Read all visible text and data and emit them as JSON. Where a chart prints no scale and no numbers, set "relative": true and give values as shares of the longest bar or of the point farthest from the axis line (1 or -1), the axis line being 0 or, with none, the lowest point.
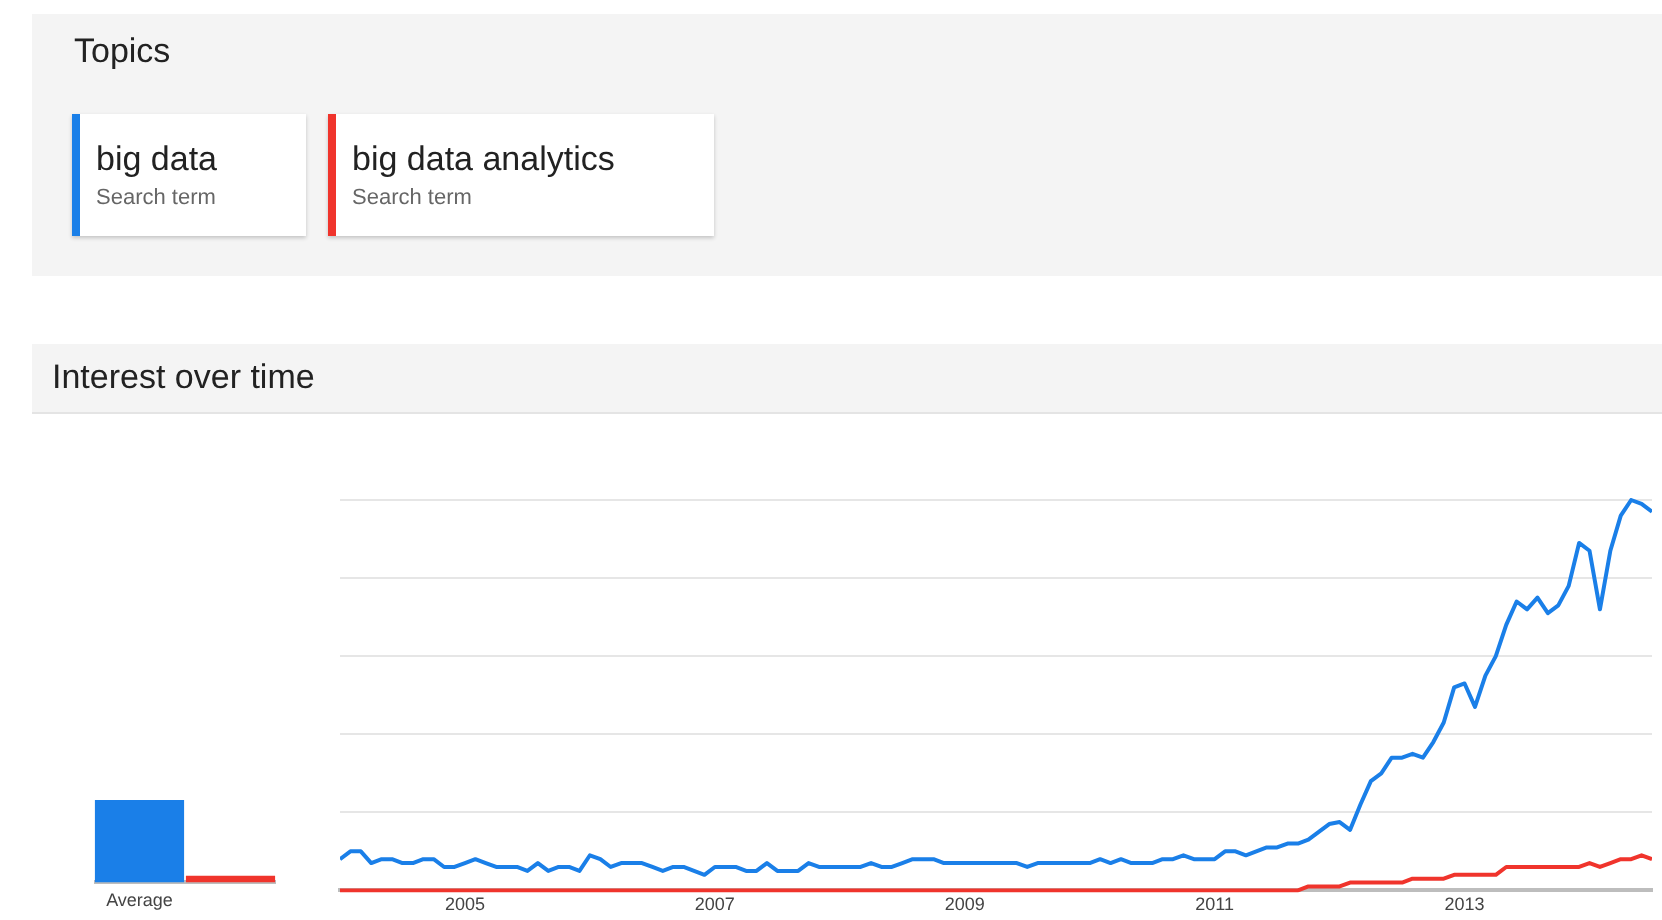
{
  "chart_data": [
    {
      "type": "bar",
      "relative": true,
      "categories": [
        "Average",
        null
      ],
      "values": [
        1,
        0.08
      ],
      "colors": [
        "#1a7fe8",
        "#f0342c"
      ]
    },
    {
      "type": "line",
      "title": "Interest over time",
      "legend_title": "Topics",
      "legend": "top",
      "relative": true,
      "grid": "y",
      "marker": "none",
      "annotations": [
        "Search term",
        "Search term"
      ],
      "xlim": [
        "2004-01",
        "2014-07"
      ],
      "xticks": [
        {
          "value": "2005",
          "label": "2005"
        },
        {
          "value": "2007",
          "label": "2007"
        },
        {
          "value": "2009",
          "label": "2009"
        },
        {
          "value": "2011",
          "label": "2011"
        },
        {
          "value": "2013",
          "label": "2013"
        }
      ],
      "x": [
        "2004-01",
        "2004-02",
        "2004-03",
        "2004-04",
        "2004-05",
        "2004-06",
        "2004-07",
        "2004-08",
        "2004-09",
        "2004-10",
        "2004-11",
        "2004-12",
        "2005-01",
        "2005-02",
        "2005-03",
        "2005-04",
        "2005-05",
        "2005-06",
        "2005-07",
        "2005-08",
        "2005-09",
        "2005-10",
        "2005-11",
        "2005-12",
        "2006-01",
        "2006-02",
        "2006-03",
        "2006-04",
        "2006-05",
        "2006-06",
        "2006-07",
        "2006-08",
        "2006-09",
        "2006-10",
        "2006-11",
        "2006-12",
        "2007-01",
        "2007-02",
        "2007-03",
        "2007-04",
        "2007-05",
        "2007-06",
        "2007-07",
        "2007-08",
        "2007-09",
        "2007-10",
        "2007-11",
        "2007-12",
        "2008-01",
        "2008-02",
        "2008-03",
        "2008-04",
        "2008-05",
        "2008-06",
        "2008-07",
        "2008-08",
        "2008-09",
        "2008-10",
        "2008-11",
        "2008-12",
        "2009-01",
        "2009-02",
        "2009-03",
        "2009-04",
        "2009-05",
        "2009-06",
        "2009-07",
        "2009-08",
        "2009-09",
        "2009-10",
        "2009-11",
        "2009-12",
        "2010-01",
        "2010-02",
        "2010-03",
        "2010-04",
        "2010-05",
        "2010-06",
        "2010-07",
        "2010-08",
        "2010-09",
        "2010-10",
        "2010-11",
        "2010-12",
        "2011-01",
        "2011-02",
        "2011-03",
        "2011-04",
        "2011-05",
        "2011-06",
        "2011-07",
        "2011-08",
        "2011-09",
        "2011-10",
        "2011-11",
        "2011-12",
        "2012-01",
        "2012-02",
        "2012-03",
        "2012-04",
        "2012-05",
        "2012-06",
        "2012-07",
        "2012-08",
        "2012-09",
        "2012-10",
        "2012-11",
        "2012-12",
        "2013-01",
        "2013-02",
        "2013-03",
        "2013-04",
        "2013-05",
        "2013-06",
        "2013-07",
        "2013-08",
        "2013-09",
        "2013-10",
        "2013-11",
        "2013-12",
        "2014-01",
        "2014-02",
        "2014-03",
        "2014-04",
        "2014-05",
        "2014-06",
        "2014-07"
      ],
      "series": [
        {
          "name": "big data",
          "color": "#1a7fe8",
          "values": [
            0.08,
            0.1,
            0.1,
            0.07,
            0.08,
            0.08,
            0.07,
            0.07,
            0.08,
            0.08,
            0.06,
            0.06,
            0.07,
            0.08,
            0.07,
            0.06,
            0.06,
            0.06,
            0.05,
            0.07,
            0.05,
            0.06,
            0.06,
            0.05,
            0.09,
            0.08,
            0.06,
            0.07,
            0.07,
            0.07,
            0.06,
            0.05,
            0.06,
            0.06,
            0.05,
            0.04,
            0.06,
            0.06,
            0.06,
            0.05,
            0.05,
            0.07,
            0.05,
            0.05,
            0.05,
            0.07,
            0.06,
            0.06,
            0.06,
            0.06,
            0.06,
            0.07,
            0.06,
            0.06,
            0.07,
            0.08,
            0.08,
            0.08,
            0.07,
            0.07,
            0.07,
            0.07,
            0.07,
            0.07,
            0.07,
            0.07,
            0.06,
            0.07,
            0.07,
            0.07,
            0.07,
            0.07,
            0.07,
            0.08,
            0.07,
            0.08,
            0.07,
            0.07,
            0.07,
            0.08,
            0.08,
            0.09,
            0.08,
            0.08,
            0.08,
            0.1,
            0.1,
            0.09,
            0.1,
            0.11,
            0.11,
            0.12,
            0.12,
            0.13,
            0.15,
            0.17,
            0.175,
            0.155,
            0.22,
            0.28,
            0.3,
            0.34,
            0.34,
            0.35,
            0.34,
            0.38,
            0.43,
            0.52,
            0.53,
            0.47,
            0.55,
            0.6,
            0.68,
            0.74,
            0.72,
            0.75,
            0.71,
            0.73,
            0.78,
            0.89,
            0.87,
            0.72,
            0.87,
            0.96,
            1.0,
            0.99,
            0.97
          ]
        },
        {
          "name": "big data analytics",
          "color": "#f0342c",
          "values": [
            0,
            0,
            0,
            0,
            0,
            0,
            0,
            0,
            0,
            0,
            0,
            0,
            0,
            0,
            0,
            0,
            0,
            0,
            0,
            0,
            0,
            0,
            0,
            0,
            0,
            0,
            0,
            0,
            0,
            0,
            0,
            0,
            0,
            0,
            0,
            0,
            0,
            0,
            0,
            0,
            0,
            0,
            0,
            0,
            0,
            0,
            0,
            0,
            0,
            0,
            0,
            0,
            0,
            0,
            0,
            0,
            0,
            0,
            0,
            0,
            0,
            0,
            0,
            0,
            0,
            0,
            0,
            0,
            0,
            0,
            0,
            0,
            0,
            0,
            0,
            0,
            0,
            0,
            0,
            0,
            0,
            0,
            0,
            0,
            0,
            0,
            0,
            0,
            0,
            0,
            0,
            0,
            0,
            0.01,
            0.01,
            0.01,
            0.01,
            0.02,
            0.02,
            0.02,
            0.02,
            0.02,
            0.02,
            0.03,
            0.03,
            0.03,
            0.03,
            0.04,
            0.04,
            0.04,
            0.04,
            0.04,
            0.06,
            0.06,
            0.06,
            0.06,
            0.06,
            0.06,
            0.06,
            0.06,
            0.07,
            0.06,
            0.07,
            0.08,
            0.08,
            0.09,
            0.08
          ]
        }
      ]
    }
  ]
}
